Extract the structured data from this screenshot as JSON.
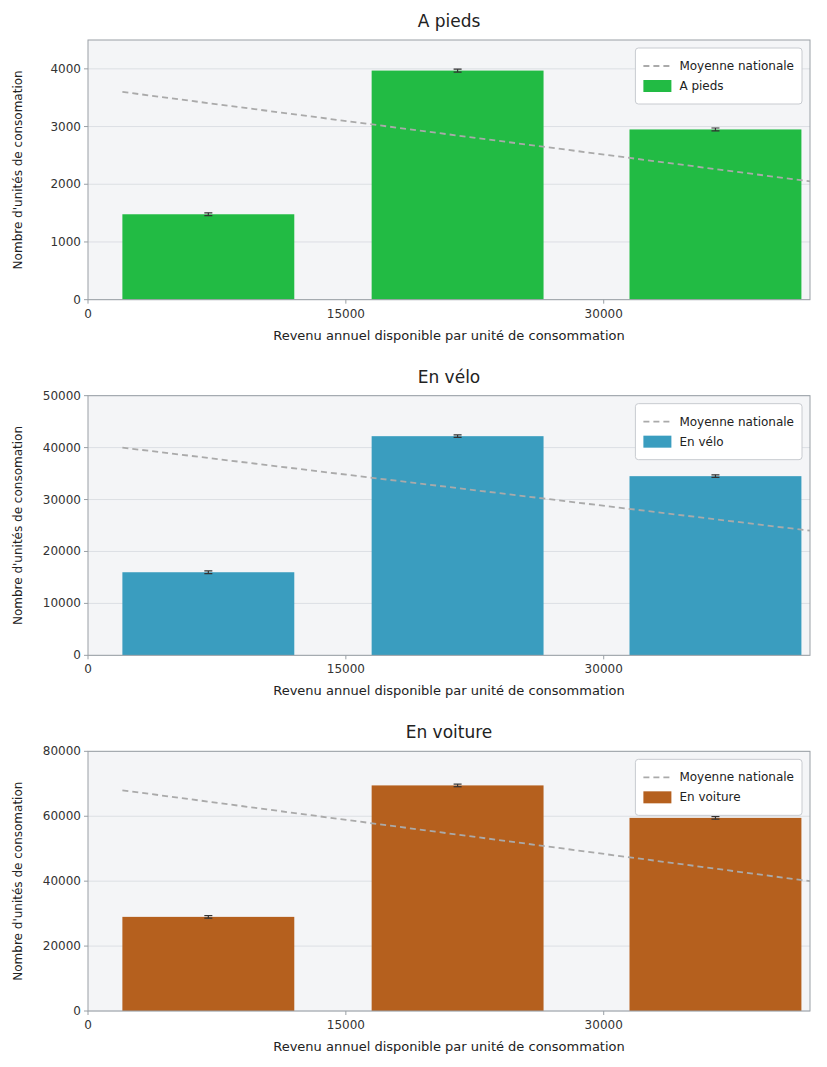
{
  "chart_data": [
    {
      "type": "bar",
      "title": "A pieds",
      "xlabel": "Revenu annuel disponible par unité de consommation",
      "ylabel": "Nombre d'unités de consomation",
      "xlim": [
        0,
        42000
      ],
      "xticks": [
        0,
        15000,
        30000
      ],
      "ylim": [
        0,
        4500
      ],
      "yticks": [
        0,
        1000,
        2000,
        3000,
        4000
      ],
      "grid": true,
      "legend": "upper right",
      "series": [
        {
          "name": "Moyenne nationale",
          "type": "line",
          "line_style": "dashed",
          "color": "#aaaaaa",
          "x": [
            2000,
            42000
          ],
          "values": [
            3600,
            2050
          ]
        },
        {
          "name": "A pieds",
          "type": "bar",
          "color": "#22bb44",
          "x": [
            7000,
            21500,
            36500
          ],
          "values": [
            1480,
            3970,
            2950
          ],
          "errors": [
            25,
            25,
            25
          ],
          "bar_width": 10000
        }
      ]
    },
    {
      "type": "bar",
      "title": "En vélo",
      "xlabel": "Revenu annuel disponible par unité de consommation",
      "ylabel": "Nombre d'unités de consomation",
      "xlim": [
        0,
        42000
      ],
      "xticks": [
        0,
        15000,
        30000
      ],
      "ylim": [
        0,
        50000
      ],
      "yticks": [
        0,
        10000,
        20000,
        30000,
        40000,
        50000
      ],
      "grid": true,
      "legend": "upper right",
      "series": [
        {
          "name": "Moyenne nationale",
          "type": "line",
          "line_style": "dashed",
          "color": "#aaaaaa",
          "x": [
            2000,
            42000
          ],
          "values": [
            40000,
            24000
          ]
        },
        {
          "name": "En vélo",
          "type": "bar",
          "color": "#3a9dbf",
          "x": [
            7000,
            21500,
            36500
          ],
          "values": [
            16000,
            42200,
            34500
          ],
          "errors": [
            250,
            250,
            250
          ],
          "bar_width": 10000
        }
      ]
    },
    {
      "type": "bar",
      "title": "En voiture",
      "xlabel": "Revenu annuel disponible par unité de consommation",
      "ylabel": "Nombre d'unités de consomation",
      "xlim": [
        0,
        42000
      ],
      "xticks": [
        0,
        15000,
        30000
      ],
      "ylim": [
        0,
        80000
      ],
      "yticks": [
        0,
        20000,
        40000,
        60000,
        80000
      ],
      "grid": true,
      "legend": "upper right",
      "series": [
        {
          "name": "Moyenne nationale",
          "type": "line",
          "line_style": "dashed",
          "color": "#aaaaaa",
          "x": [
            2000,
            42000
          ],
          "values": [
            68000,
            40000
          ]
        },
        {
          "name": "En voiture",
          "type": "bar",
          "color": "#b5601e",
          "x": [
            7000,
            21500,
            36500
          ],
          "values": [
            29000,
            69500,
            59500
          ],
          "errors": [
            400,
            400,
            400
          ],
          "bar_width": 10000
        }
      ]
    }
  ]
}
